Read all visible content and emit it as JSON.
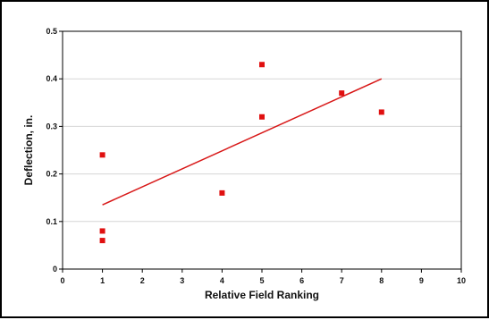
{
  "chart_data": {
    "type": "scatter",
    "xlabel": "Relative Field Ranking",
    "ylabel": "Deflection, in.",
    "xlim": [
      0,
      10
    ],
    "ylim": [
      0,
      0.5
    ],
    "x_ticks": [
      "0",
      "1",
      "2",
      "3",
      "4",
      "5",
      "6",
      "7",
      "8",
      "9",
      "10"
    ],
    "y_ticks": [
      "0",
      "0.1",
      "0.2",
      "0.3",
      "0.4",
      "0.5"
    ],
    "grid": true,
    "legend": "none",
    "series": [
      {
        "points": [
          {
            "x": 1,
            "y": 0.24
          },
          {
            "x": 1,
            "y": 0.08
          },
          {
            "x": 1,
            "y": 0.06
          },
          {
            "x": 4,
            "y": 0.16
          },
          {
            "x": 5,
            "y": 0.43
          },
          {
            "x": 5,
            "y": 0.32
          },
          {
            "x": 7,
            "y": 0.37
          },
          {
            "x": 8,
            "y": 0.33
          }
        ],
        "color": "#e01010"
      }
    ],
    "trendline": {
      "x": [
        1,
        8
      ],
      "y": [
        0.135,
        0.4
      ],
      "color": "#d81818"
    }
  }
}
